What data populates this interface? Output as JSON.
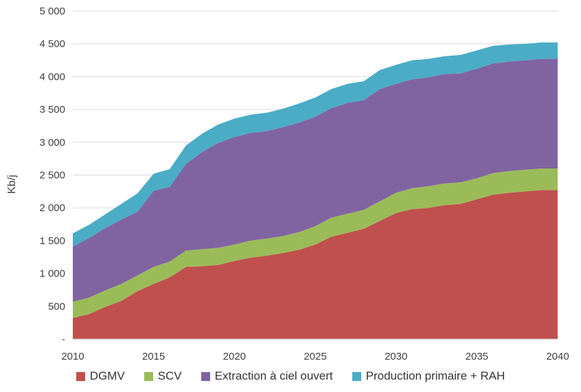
{
  "chart_data": {
    "type": "area",
    "stacked": true,
    "ylabel": "Kb/j",
    "xlabel": "",
    "xlim": [
      2010,
      2040
    ],
    "ylim": [
      0,
      5000
    ],
    "x_ticks": [
      "2010",
      "2015",
      "2020",
      "2025",
      "2030",
      "2035",
      "2040"
    ],
    "y_ticks": [
      "-",
      "500",
      "1 000",
      "1 500",
      "2 000",
      "2 500",
      "3 000",
      "3 500",
      "4 000",
      "4 500",
      "5 000"
    ],
    "grid": true,
    "legend_position": "bottom",
    "x": [
      2010,
      2011,
      2012,
      2013,
      2014,
      2015,
      2016,
      2017,
      2018,
      2019,
      2020,
      2021,
      2022,
      2023,
      2024,
      2025,
      2026,
      2027,
      2028,
      2029,
      2030,
      2031,
      2032,
      2033,
      2034,
      2035,
      2036,
      2037,
      2038,
      2039,
      2040
    ],
    "series": [
      {
        "name": "DGMV",
        "color": "#c0504d",
        "values": [
          320,
          380,
          490,
          580,
          730,
          840,
          940,
          1100,
          1110,
          1130,
          1190,
          1240,
          1270,
          1310,
          1360,
          1440,
          1560,
          1620,
          1680,
          1800,
          1920,
          1980,
          2000,
          2040,
          2060,
          2130,
          2200,
          2230,
          2250,
          2270,
          2270
        ]
      },
      {
        "name": "SCV",
        "color": "#9bbb59",
        "values": [
          250,
          250,
          250,
          260,
          240,
          260,
          240,
          250,
          260,
          260,
          250,
          260,
          260,
          260,
          270,
          280,
          290,
          290,
          290,
          300,
          310,
          320,
          330,
          330,
          330,
          320,
          330,
          330,
          330,
          330,
          330
        ]
      },
      {
        "name": "Extraction à ciel ouvert",
        "color": "#8064a2",
        "values": [
          840,
          910,
          950,
          980,
          970,
          1160,
          1140,
          1320,
          1480,
          1600,
          1640,
          1640,
          1640,
          1660,
          1670,
          1670,
          1670,
          1690,
          1670,
          1710,
          1660,
          1660,
          1660,
          1670,
          1660,
          1670,
          1670,
          1670,
          1670,
          1670,
          1670
        ]
      },
      {
        "name": "Production primaire + RAH",
        "color": "#4bacc6",
        "values": [
          200,
          200,
          210,
          240,
          280,
          260,
          270,
          280,
          280,
          280,
          280,
          280,
          280,
          280,
          290,
          290,
          290,
          290,
          290,
          290,
          290,
          290,
          280,
          270,
          280,
          280,
          270,
          260,
          250,
          250,
          250
        ]
      }
    ]
  }
}
